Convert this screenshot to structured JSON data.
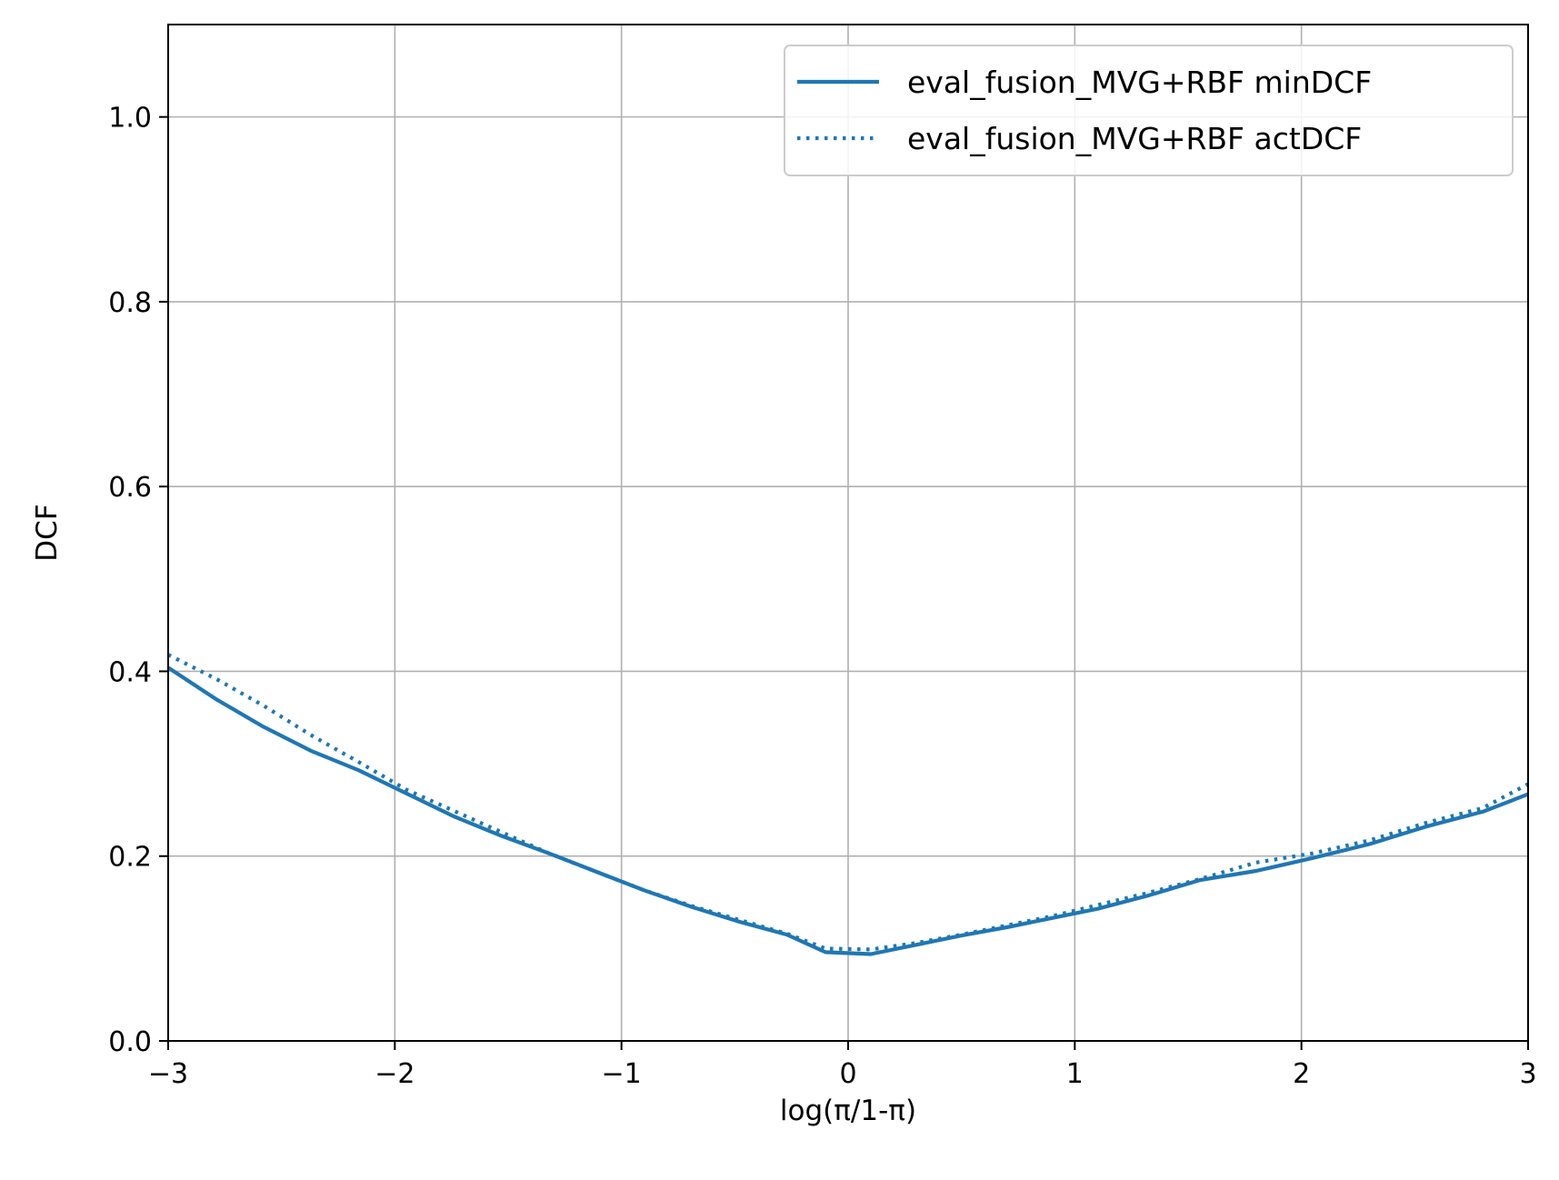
{
  "chart_data": {
    "type": "line",
    "title": "",
    "xlabel": "log(π/1-π)",
    "ylabel": "DCF",
    "xlim": [
      -3,
      3
    ],
    "ylim": [
      0,
      1.1
    ],
    "xticks": [
      -3,
      -2,
      -1,
      0,
      1,
      2,
      3
    ],
    "xtick_labels": [
      "−3",
      "−2",
      "−1",
      "0",
      "1",
      "2",
      "3"
    ],
    "yticks": [
      0,
      0.2,
      0.4,
      0.6,
      0.8,
      1.0
    ],
    "ytick_labels": [
      "0.0",
      "0.2",
      "0.4",
      "0.6",
      "0.8",
      "1.0"
    ],
    "grid": true,
    "legend_position": "top-right",
    "x": [
      -3.0,
      -2.79,
      -2.58,
      -2.37,
      -2.16,
      -1.95,
      -1.74,
      -1.53,
      -1.32,
      -1.11,
      -0.9,
      -0.69,
      -0.48,
      -0.27,
      -0.1,
      0.1,
      0.3,
      0.5,
      0.7,
      0.9,
      1.1,
      1.32,
      1.55,
      1.8,
      2.05,
      2.3,
      2.55,
      2.8,
      3.0
    ],
    "series": [
      {
        "name": "eval_fusion_MVG+RBF minDCF",
        "style": "solid",
        "color": "#1f77b4",
        "values": [
          0.404,
          0.37,
          0.34,
          0.314,
          0.293,
          0.268,
          0.243,
          0.222,
          0.203,
          0.183,
          0.163,
          0.145,
          0.129,
          0.115,
          0.096,
          0.094,
          0.104,
          0.114,
          0.123,
          0.133,
          0.143,
          0.157,
          0.174,
          0.184,
          0.198,
          0.213,
          0.232,
          0.248,
          0.267
        ]
      },
      {
        "name": "eval_fusion_MVG+RBF actDCF",
        "style": "dotted",
        "color": "#1f77b4",
        "values": [
          0.418,
          0.392,
          0.363,
          0.331,
          0.302,
          0.272,
          0.249,
          0.226,
          0.203,
          0.183,
          0.163,
          0.146,
          0.131,
          0.116,
          0.1,
          0.099,
          0.106,
          0.115,
          0.125,
          0.135,
          0.147,
          0.16,
          0.175,
          0.193,
          0.203,
          0.217,
          0.236,
          0.252,
          0.278
        ]
      }
    ]
  }
}
